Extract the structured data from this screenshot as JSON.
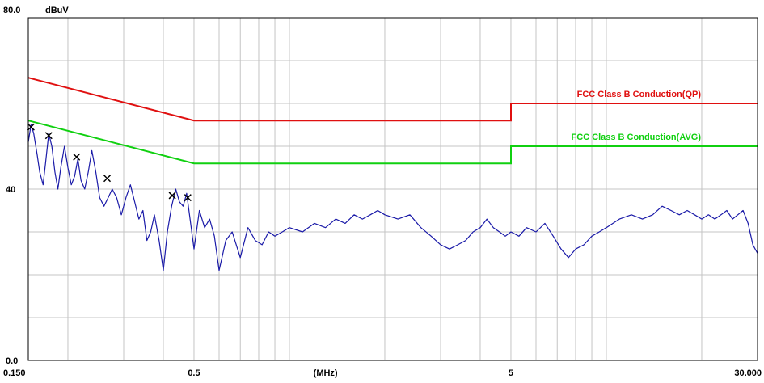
{
  "chart_data": {
    "type": "line",
    "title": "",
    "x_scale": "log",
    "xlim": [
      0.15,
      30
    ],
    "ylim": [
      0,
      80
    ],
    "grid": true,
    "y_axis_top_label": "80.0",
    "y_unit": "dBuV",
    "x_unit": "(MHz)",
    "y_ticks": [
      {
        "value": 80,
        "label": "80.0"
      },
      {
        "value": 40,
        "label": "40"
      },
      {
        "value": 0,
        "label": "0.0"
      }
    ],
    "x_ticks": [
      {
        "value": 0.15,
        "label": "0.150"
      },
      {
        "value": 0.5,
        "label": "0.5"
      },
      {
        "value": 5,
        "label": "5"
      },
      {
        "value": 30,
        "label": "30.000"
      }
    ],
    "x_unit_position": 1.3,
    "grid_x": [
      0.2,
      0.3,
      0.4,
      0.5,
      0.6,
      0.7,
      0.8,
      0.9,
      1,
      2,
      3,
      4,
      5,
      6,
      7,
      8,
      9,
      10,
      20,
      30
    ],
    "grid_y": [
      10,
      20,
      30,
      40,
      50,
      60,
      70
    ],
    "limits": [
      {
        "name": "FCC Class B Conduction(QP)",
        "color": "#e01010",
        "points": [
          [
            0.15,
            66
          ],
          [
            0.5,
            56
          ],
          [
            5,
            56
          ],
          [
            5,
            60
          ],
          [
            30,
            60
          ]
        ]
      },
      {
        "name": "FCC Class B Conduction(AVG)",
        "color": "#10d010",
        "points": [
          [
            0.15,
            56
          ],
          [
            0.5,
            46
          ],
          [
            5,
            46
          ],
          [
            5,
            50
          ],
          [
            30,
            50
          ]
        ]
      }
    ],
    "series": [
      {
        "color": "#1a1aa8",
        "points": [
          [
            0.15,
            51
          ],
          [
            0.153,
            55
          ],
          [
            0.156,
            53
          ],
          [
            0.16,
            48
          ],
          [
            0.163,
            44
          ],
          [
            0.167,
            41
          ],
          [
            0.17,
            46
          ],
          [
            0.174,
            53
          ],
          [
            0.178,
            50
          ],
          [
            0.182,
            44
          ],
          [
            0.186,
            40
          ],
          [
            0.19,
            45
          ],
          [
            0.195,
            50
          ],
          [
            0.2,
            45
          ],
          [
            0.205,
            41
          ],
          [
            0.21,
            43
          ],
          [
            0.215,
            47
          ],
          [
            0.22,
            42
          ],
          [
            0.226,
            40
          ],
          [
            0.232,
            44
          ],
          [
            0.238,
            49
          ],
          [
            0.245,
            44
          ],
          [
            0.252,
            38
          ],
          [
            0.26,
            36
          ],
          [
            0.268,
            38
          ],
          [
            0.276,
            40
          ],
          [
            0.285,
            38
          ],
          [
            0.295,
            34
          ],
          [
            0.305,
            38
          ],
          [
            0.315,
            41
          ],
          [
            0.325,
            37
          ],
          [
            0.335,
            33
          ],
          [
            0.345,
            35
          ],
          [
            0.355,
            28
          ],
          [
            0.365,
            30
          ],
          [
            0.375,
            34
          ],
          [
            0.388,
            28
          ],
          [
            0.4,
            21
          ],
          [
            0.412,
            30
          ],
          [
            0.425,
            36
          ],
          [
            0.438,
            40
          ],
          [
            0.45,
            37
          ],
          [
            0.462,
            36
          ],
          [
            0.474,
            39
          ],
          [
            0.486,
            33
          ],
          [
            0.5,
            26
          ],
          [
            0.52,
            35
          ],
          [
            0.54,
            31
          ],
          [
            0.56,
            33
          ],
          [
            0.58,
            29
          ],
          [
            0.6,
            21
          ],
          [
            0.63,
            28
          ],
          [
            0.66,
            30
          ],
          [
            0.7,
            24
          ],
          [
            0.74,
            31
          ],
          [
            0.78,
            28
          ],
          [
            0.82,
            27
          ],
          [
            0.86,
            30
          ],
          [
            0.9,
            29
          ],
          [
            0.95,
            30
          ],
          [
            1.0,
            31
          ],
          [
            1.1,
            30
          ],
          [
            1.2,
            32
          ],
          [
            1.3,
            31
          ],
          [
            1.4,
            33
          ],
          [
            1.5,
            32
          ],
          [
            1.6,
            34
          ],
          [
            1.7,
            33
          ],
          [
            1.8,
            34
          ],
          [
            1.9,
            35
          ],
          [
            2.0,
            34
          ],
          [
            2.2,
            33
          ],
          [
            2.4,
            34
          ],
          [
            2.6,
            31
          ],
          [
            2.8,
            29
          ],
          [
            3.0,
            27
          ],
          [
            3.2,
            26
          ],
          [
            3.4,
            27
          ],
          [
            3.6,
            28
          ],
          [
            3.8,
            30
          ],
          [
            4.0,
            31
          ],
          [
            4.2,
            33
          ],
          [
            4.4,
            31
          ],
          [
            4.6,
            30
          ],
          [
            4.8,
            29
          ],
          [
            5.0,
            30
          ],
          [
            5.3,
            29
          ],
          [
            5.6,
            31
          ],
          [
            6.0,
            30
          ],
          [
            6.4,
            32
          ],
          [
            6.8,
            29
          ],
          [
            7.2,
            26
          ],
          [
            7.6,
            24
          ],
          [
            8.0,
            26
          ],
          [
            8.5,
            27
          ],
          [
            9.0,
            29
          ],
          [
            9.5,
            30
          ],
          [
            10.0,
            31
          ],
          [
            11.0,
            33
          ],
          [
            12.0,
            34
          ],
          [
            13.0,
            33
          ],
          [
            14.0,
            34
          ],
          [
            15.0,
            36
          ],
          [
            16.0,
            35
          ],
          [
            17.0,
            34
          ],
          [
            18.0,
            35
          ],
          [
            19.0,
            34
          ],
          [
            20.0,
            33
          ],
          [
            21.0,
            34
          ],
          [
            22.0,
            33
          ],
          [
            23.0,
            34
          ],
          [
            24.0,
            35
          ],
          [
            25.0,
            33
          ],
          [
            26.0,
            34
          ],
          [
            27.0,
            35
          ],
          [
            28.0,
            32
          ],
          [
            29.0,
            27
          ],
          [
            30.0,
            25
          ]
        ]
      }
    ],
    "markers": [
      [
        0.153,
        54.5
      ],
      [
        0.174,
        52.5
      ],
      [
        0.213,
        47.5
      ],
      [
        0.266,
        42.5
      ],
      [
        0.427,
        38.5
      ],
      [
        0.478,
        38
      ]
    ]
  }
}
